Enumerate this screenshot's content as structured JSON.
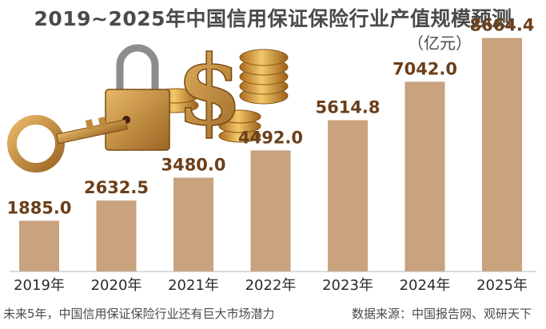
{
  "chart_data": {
    "type": "bar",
    "title": "2019~2025年中国信用保证保险行业产值规模预测",
    "unit": "（亿元）",
    "categories": [
      "2019年",
      "2020年",
      "2021年",
      "2022年",
      "2023年",
      "2024年",
      "2025年"
    ],
    "values": [
      1885.0,
      2632.5,
      3480.0,
      4492.0,
      5614.8,
      7042.0,
      8664.4
    ],
    "value_labels": [
      "1885.0",
      "2632.5",
      "3480.0",
      "4492.0",
      "5614.8",
      "7042.0",
      "8664.4"
    ],
    "ylim": [
      0,
      9600
    ],
    "grid": false,
    "bar_color": "#c9a27e",
    "label_color": "#6b3f1a"
  },
  "footnote": "未来5年，中国信用保证保险行业还有巨大市场潜力",
  "source": "数据来源：中国报告网、观研天下",
  "illustration": "padlock-key-dollar-coins"
}
